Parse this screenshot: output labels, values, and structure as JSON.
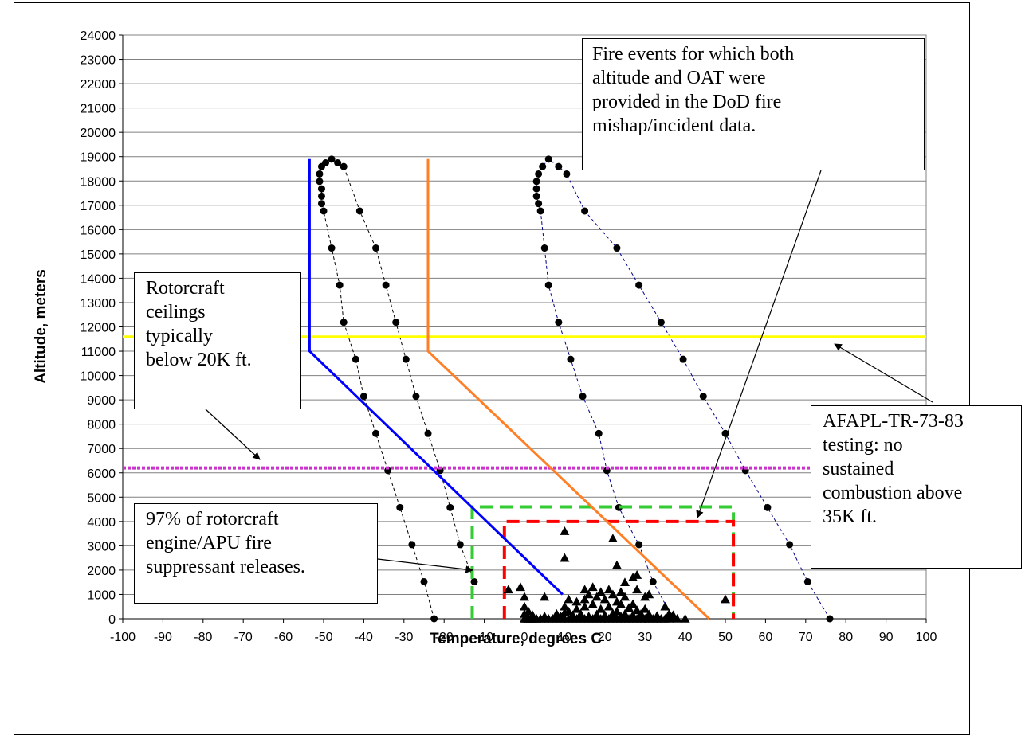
{
  "chart_data": {
    "type": "scatter",
    "xlabel": "Temperature, degrees C",
    "ylabel": "Altitude, meters",
    "xlim": [
      -100,
      100
    ],
    "ylim": [
      0,
      24000
    ],
    "x_ticks": [
      -100,
      -90,
      -80,
      -70,
      -60,
      -50,
      -40,
      -30,
      -20,
      -10,
      0,
      10,
      20,
      30,
      40,
      50,
      60,
      70,
      80,
      90,
      100
    ],
    "y_ticks": [
      0,
      1000,
      2000,
      3000,
      4000,
      5000,
      6000,
      7000,
      8000,
      9000,
      10000,
      11000,
      12000,
      13000,
      14000,
      15000,
      16000,
      17000,
      18000,
      19000,
      20000,
      21000,
      22000,
      23000,
      24000
    ],
    "grid": "horizontal",
    "atmosphere_profiles": [
      {
        "color": "#000000",
        "points": [
          [
            -22.5,
            0
          ],
          [
            -25,
            1524
          ],
          [
            -28,
            3048
          ],
          [
            -31,
            4572
          ],
          [
            -34,
            6096
          ],
          [
            -37,
            7620
          ],
          [
            -40,
            9144
          ],
          [
            -42,
            10668
          ],
          [
            -45,
            12192
          ],
          [
            -46,
            13716
          ],
          [
            -48,
            15240
          ],
          [
            -50,
            16764
          ],
          [
            -50.5,
            17068
          ],
          [
            -50.5,
            17373
          ],
          [
            -50.5,
            17678
          ],
          [
            -51,
            17983
          ],
          [
            -51,
            18288
          ],
          [
            -50.5,
            18593
          ],
          [
            -49.5,
            18745
          ],
          [
            -48,
            18898
          ],
          [
            -46.5,
            18745
          ],
          [
            -45,
            18593
          ],
          [
            -41,
            16764
          ],
          [
            -37,
            15240
          ],
          [
            -34.5,
            13716
          ],
          [
            -32,
            12192
          ],
          [
            -29.5,
            10668
          ],
          [
            -27,
            9144
          ],
          [
            -24,
            7620
          ],
          [
            -21,
            6096
          ],
          [
            -18.5,
            4572
          ],
          [
            -16,
            3048
          ],
          [
            -12.5,
            1524
          ]
        ]
      },
      {
        "color": "#00008b",
        "points": [
          [
            76,
            0
          ],
          [
            70.5,
            1524
          ],
          [
            66,
            3048
          ],
          [
            60.5,
            4572
          ],
          [
            55,
            6096
          ],
          [
            50,
            7620
          ],
          [
            44.5,
            9144
          ],
          [
            39.5,
            10668
          ],
          [
            34,
            12192
          ],
          [
            28.5,
            13716
          ],
          [
            23,
            15240
          ],
          [
            15,
            16764
          ],
          [
            10.5,
            18288
          ],
          [
            8.5,
            18593
          ],
          [
            6,
            18898
          ],
          [
            4.5,
            18593
          ],
          [
            3.5,
            18288
          ],
          [
            3,
            17983
          ],
          [
            3,
            17678
          ],
          [
            3,
            17373
          ],
          [
            3.5,
            17068
          ],
          [
            4,
            16764
          ],
          [
            5,
            15240
          ],
          [
            6,
            13716
          ],
          [
            8.5,
            12192
          ],
          [
            11.5,
            10668
          ],
          [
            14.5,
            9144
          ],
          [
            18.5,
            7620
          ],
          [
            20.5,
            6096
          ],
          [
            23.5,
            4572
          ],
          [
            28.5,
            3048
          ],
          [
            32,
            1524
          ],
          [
            37,
            0
          ]
        ]
      }
    ],
    "line_series": [
      {
        "color": "#0000ff",
        "points": [
          [
            -53.5,
            18900
          ],
          [
            -53.5,
            11000
          ],
          [
            9.5,
            1000
          ]
        ]
      },
      {
        "color": "#ff7f27",
        "points": [
          [
            -24,
            18900
          ],
          [
            -24,
            11000
          ],
          [
            46,
            0
          ]
        ]
      }
    ],
    "reference_lines": [
      {
        "type": "horizontal",
        "y": 11600,
        "color": "#ffff00",
        "style": "solid"
      },
      {
        "type": "horizontal",
        "y": 6200,
        "color": "#cc33cc",
        "style": "dotted"
      }
    ],
    "boxes": [
      {
        "color": "#33cc33",
        "x": [
          -13,
          52
        ],
        "y": [
          0,
          4600
        ],
        "style": "dashed"
      },
      {
        "color": "#ff0000",
        "x": [
          -5,
          52
        ],
        "y": [
          0,
          4000
        ],
        "style": "dashed"
      }
    ],
    "fire_events": [
      [
        0,
        0
      ],
      [
        0.5,
        0
      ],
      [
        1,
        0
      ],
      [
        1.5,
        0
      ],
      [
        2,
        0
      ],
      [
        2.5,
        0
      ],
      [
        3,
        0
      ],
      [
        4,
        0
      ],
      [
        5,
        0
      ],
      [
        6,
        0
      ],
      [
        7,
        0
      ],
      [
        8,
        0
      ],
      [
        9,
        0
      ],
      [
        10,
        0
      ],
      [
        11,
        0
      ],
      [
        12,
        0
      ],
      [
        13,
        0
      ],
      [
        14,
        0
      ],
      [
        15,
        0
      ],
      [
        16,
        0
      ],
      [
        17,
        0
      ],
      [
        18,
        0
      ],
      [
        19,
        0
      ],
      [
        20,
        0
      ],
      [
        21,
        0
      ],
      [
        22,
        0
      ],
      [
        23,
        0
      ],
      [
        24,
        0
      ],
      [
        25,
        0
      ],
      [
        26,
        0
      ],
      [
        27,
        0
      ],
      [
        28,
        0
      ],
      [
        29,
        0
      ],
      [
        30,
        0
      ],
      [
        31,
        0
      ],
      [
        32,
        0
      ],
      [
        33,
        0
      ],
      [
        34,
        0
      ],
      [
        35,
        0
      ],
      [
        36,
        0
      ],
      [
        38,
        0
      ],
      [
        40,
        0
      ],
      [
        0,
        200
      ],
      [
        2,
        150
      ],
      [
        5,
        100
      ],
      [
        8,
        200
      ],
      [
        9,
        100
      ],
      [
        10,
        250
      ],
      [
        12,
        150
      ],
      [
        14,
        200
      ],
      [
        16,
        100
      ],
      [
        18,
        180
      ],
      [
        20,
        150
      ],
      [
        22,
        220
      ],
      [
        24,
        100
      ],
      [
        25,
        200
      ],
      [
        27,
        150
      ],
      [
        29,
        200
      ],
      [
        31,
        180
      ],
      [
        33,
        120
      ],
      [
        37,
        150
      ],
      [
        0,
        500
      ],
      [
        1,
        300
      ],
      [
        10,
        500
      ],
      [
        11,
        300
      ],
      [
        13,
        400
      ],
      [
        15,
        500
      ],
      [
        17,
        600
      ],
      [
        19,
        400
      ],
      [
        21,
        500
      ],
      [
        23,
        300
      ],
      [
        24,
        600
      ],
      [
        26,
        450
      ],
      [
        28,
        350
      ],
      [
        0,
        900
      ],
      [
        11,
        800
      ],
      [
        13,
        700
      ],
      [
        15,
        800
      ],
      [
        16,
        1000
      ],
      [
        18,
        900
      ],
      [
        20,
        800
      ],
      [
        22,
        1000
      ],
      [
        23,
        700
      ],
      [
        25,
        900
      ],
      [
        27,
        600
      ],
      [
        30,
        900
      ],
      [
        30,
        400
      ],
      [
        -4,
        1200
      ],
      [
        -1,
        1300
      ],
      [
        5,
        900
      ],
      [
        15,
        1200
      ],
      [
        17,
        1300
      ],
      [
        19,
        1100
      ],
      [
        21,
        1200
      ],
      [
        24,
        1100
      ],
      [
        25,
        1500
      ],
      [
        27,
        1700
      ],
      [
        28,
        1200
      ],
      [
        31,
        1000
      ],
      [
        35,
        500
      ],
      [
        36,
        200
      ],
      [
        50,
        800
      ],
      [
        10,
        3600
      ],
      [
        10,
        2500
      ],
      [
        22,
        3300
      ],
      [
        23,
        2200
      ],
      [
        28,
        1800
      ]
    ]
  },
  "annotations": {
    "fire_events": "Fire events for which both\naltitude and OAT were\nprovided in the DoD fire\nmishap/incident data.",
    "rotorcraft_ceilings": "Rotorcraft\nceilings\ntypically\nbelow 20K ft.",
    "afapl": "AFAPL-TR-73-83\ntesting: no\nsustained\ncombustion above\n35K ft.",
    "rotorcraft_releases": "97% of rotorcraft\nengine/APU fire\nsuppressant releases."
  }
}
